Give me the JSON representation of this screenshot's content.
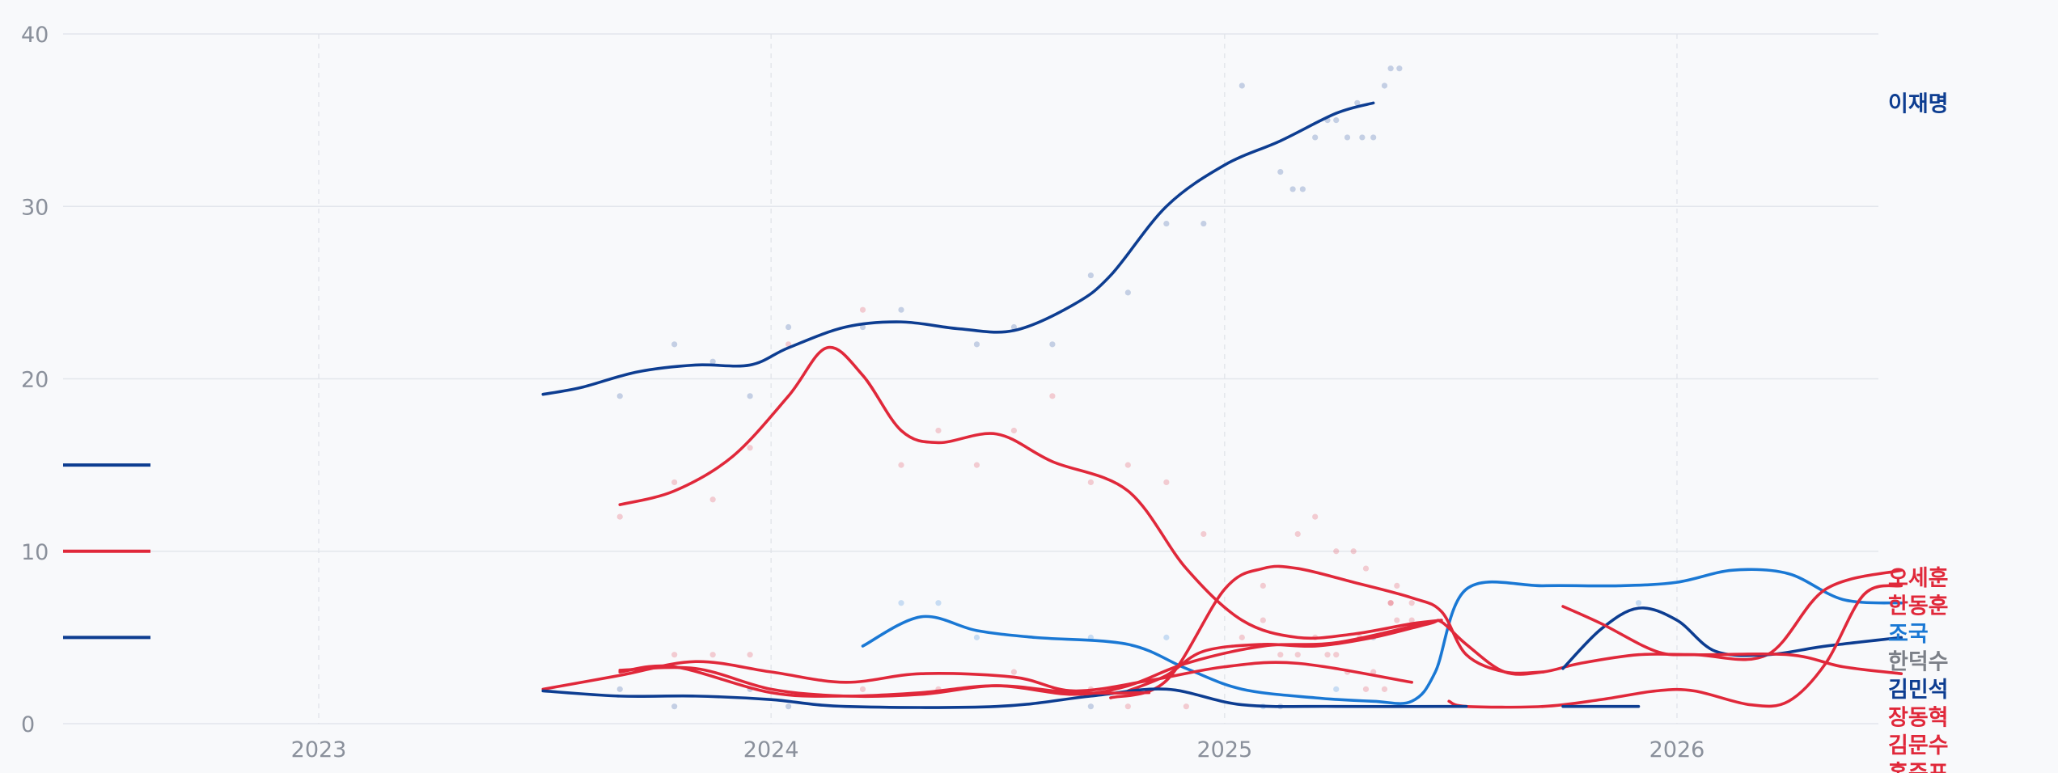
{
  "chart_data": {
    "type": "line",
    "x_axis": {
      "type": "date",
      "range": [
        "2022-07-15",
        "2026-07-01"
      ],
      "ticks": [
        "2023-01-01",
        "2024-01-01",
        "2025-01-01",
        "2026-01-01"
      ],
      "tick_labels": [
        "2023",
        "2024",
        "2025",
        "2026"
      ],
      "grid": "dashed vertical"
    },
    "y_axis": {
      "range": [
        0,
        40
      ],
      "ticks": [
        0,
        10,
        20,
        30,
        40
      ],
      "grid": "solid horizontal"
    },
    "legend": {
      "placement": "left",
      "swatch_colors": [
        "#0d3d91",
        "#e0283a",
        "#0d3d91"
      ],
      "swatch_levels": [
        15,
        10,
        5
      ]
    },
    "series": [
      {
        "name": "이재명",
        "color": "#0d3d91",
        "label_color": "#0d3d91",
        "points": [
          [
            "2023-07-01",
            19.1
          ],
          [
            "2023-08-01",
            19.5
          ],
          [
            "2023-09-15",
            20.4
          ],
          [
            "2023-11-01",
            20.8
          ],
          [
            "2023-12-15",
            20.8
          ],
          [
            "2024-01-15",
            21.8
          ],
          [
            "2024-03-01",
            23.0
          ],
          [
            "2024-04-15",
            23.3
          ],
          [
            "2024-06-01",
            22.9
          ],
          [
            "2024-07-15",
            22.8
          ],
          [
            "2024-09-01",
            24.3
          ],
          [
            "2024-10-01",
            26.0
          ],
          [
            "2024-11-15",
            30.0
          ],
          [
            "2025-01-01",
            32.4
          ],
          [
            "2025-02-15",
            33.8
          ],
          [
            "2025-04-01",
            35.4
          ],
          [
            "2025-05-01",
            36.0
          ]
        ]
      },
      {
        "name": "조국",
        "color": "#1a78d4",
        "label_color": "#1a78d4",
        "points": [
          [
            "2024-03-15",
            4.5
          ],
          [
            "2024-05-01",
            6.2
          ],
          [
            "2024-06-15",
            5.4
          ],
          [
            "2024-08-01",
            5.0
          ],
          [
            "2024-10-15",
            4.6
          ],
          [
            "2024-12-01",
            3.2
          ],
          [
            "2025-01-15",
            2.0
          ],
          [
            "2025-03-15",
            1.5
          ],
          [
            "2025-05-01",
            1.3
          ],
          [
            "2025-06-01",
            1.3
          ],
          [
            "2025-06-20",
            3.0
          ],
          [
            "2025-07-15",
            7.8
          ],
          [
            "2025-09-15",
            8.0
          ],
          [
            "2025-11-15",
            8.0
          ],
          [
            "2026-01-01",
            8.2
          ],
          [
            "2026-02-15",
            8.9
          ],
          [
            "2026-04-01",
            8.7
          ],
          [
            "2026-05-15",
            7.2
          ],
          [
            "2026-07-01",
            7.0
          ]
        ]
      },
      {
        "name": "오세훈",
        "color": "#e0283a",
        "label_color": "#e0283a",
        "points": [
          [
            "2024-10-15",
            1.9
          ],
          [
            "2024-11-15",
            2.8
          ],
          [
            "2024-12-15",
            4.2
          ],
          [
            "2025-02-01",
            4.6
          ],
          [
            "2025-03-15",
            4.5
          ],
          [
            "2025-05-01",
            5.0
          ],
          [
            "2025-06-15",
            5.8
          ],
          [
            "2025-06-25",
            5.9
          ],
          [
            "2025-07-15",
            4.6
          ],
          [
            "2025-08-15",
            3.0
          ],
          [
            "2025-09-15",
            3.0
          ],
          [
            "2025-10-15",
            3.5
          ],
          [
            "2025-12-01",
            4.0
          ],
          [
            "2026-01-15",
            4.0
          ],
          [
            "2026-03-15",
            4.0
          ],
          [
            "2026-05-01",
            7.8
          ],
          [
            "2026-07-01",
            8.9
          ]
        ]
      },
      {
        "name": "한동훈",
        "color": "#e0283a",
        "label_color": "#e0283a",
        "points": [
          [
            "2023-09-01",
            12.7
          ],
          [
            "2023-10-15",
            13.5
          ],
          [
            "2023-12-01",
            15.5
          ],
          [
            "2024-01-15",
            19.0
          ],
          [
            "2024-02-15",
            21.8
          ],
          [
            "2024-03-15",
            20.2
          ],
          [
            "2024-04-15",
            17.0
          ],
          [
            "2024-05-15",
            16.3
          ],
          [
            "2024-07-01",
            16.8
          ],
          [
            "2024-08-15",
            15.2
          ],
          [
            "2024-10-15",
            13.5
          ],
          [
            "2024-12-01",
            9.0
          ],
          [
            "2025-01-15",
            6.0
          ],
          [
            "2025-03-01",
            5.0
          ],
          [
            "2025-04-15",
            5.2
          ],
          [
            "2025-06-01",
            5.8
          ],
          [
            "2025-06-25",
            6.0
          ]
        ]
      },
      {
        "name": "한덕수",
        "color": "#e0283a",
        "label_color": "#7c8088",
        "points": [
          [
            "2024-10-01",
            1.5
          ],
          [
            "2024-11-15",
            2.5
          ],
          [
            "2025-01-01",
            7.8
          ],
          [
            "2025-02-01",
            9.0
          ],
          [
            "2025-03-01",
            9.0
          ],
          [
            "2025-04-15",
            8.2
          ],
          [
            "2025-06-01",
            7.3
          ],
          [
            "2025-06-25",
            6.5
          ],
          [
            "2025-07-15",
            4.0
          ],
          [
            "2025-08-15",
            3.0
          ],
          [
            "2025-09-15",
            3.0
          ]
        ]
      },
      {
        "name": "김민석",
        "color": "#0d3d91",
        "label_color": "#0d3d91",
        "points": [
          [
            "2025-10-01",
            3.2
          ],
          [
            "2025-11-01",
            5.5
          ],
          [
            "2025-12-01",
            6.7
          ],
          [
            "2026-01-01",
            6.0
          ],
          [
            "2026-02-01",
            4.2
          ],
          [
            "2026-03-15",
            4.0
          ],
          [
            "2026-05-01",
            4.5
          ],
          [
            "2026-07-01",
            5.0
          ]
        ]
      },
      {
        "name": "장동혁",
        "color": "#e0283a",
        "label_color": "#e0283a",
        "points": [
          [
            "2025-10-01",
            6.8
          ],
          [
            "2025-11-01",
            5.8
          ],
          [
            "2025-12-15",
            4.2
          ],
          [
            "2026-01-15",
            4.0
          ],
          [
            "2026-04-01",
            4.0
          ],
          [
            "2026-05-15",
            3.3
          ],
          [
            "2026-07-01",
            2.9
          ]
        ]
      },
      {
        "name": "김문수",
        "color": "#e0283a",
        "label_color": "#e0283a",
        "points": [
          [
            "2025-07-01",
            1.3
          ],
          [
            "2025-07-15",
            1.0
          ],
          [
            "2025-09-15",
            1.0
          ],
          [
            "2025-11-01",
            1.4
          ],
          [
            "2025-12-15",
            1.9
          ],
          [
            "2026-01-15",
            1.9
          ],
          [
            "2026-03-01",
            1.1
          ],
          [
            "2026-04-01",
            1.3
          ],
          [
            "2026-05-01",
            3.5
          ],
          [
            "2026-06-01",
            7.5
          ],
          [
            "2026-07-01",
            8.0
          ]
        ]
      },
      {
        "name": "홍준표",
        "color": "#e0283a",
        "label_color": "#e0283a",
        "points": [
          [
            "2023-07-01",
            2.0
          ],
          [
            "2023-09-01",
            2.8
          ],
          [
            "2023-11-01",
            3.6
          ],
          [
            "2024-01-01",
            3.0
          ],
          [
            "2024-03-01",
            2.4
          ],
          [
            "2024-05-01",
            2.9
          ],
          [
            "2024-07-15",
            2.7
          ],
          [
            "2024-09-01",
            1.9
          ],
          [
            "2024-11-01",
            2.5
          ],
          [
            "2025-01-01",
            3.3
          ],
          [
            "2025-03-01",
            3.5
          ],
          [
            "2025-06-01",
            2.4
          ]
        ]
      },
      {
        "name": "",
        "color": "#0d3d91",
        "points": [
          [
            "2023-07-01",
            1.9
          ],
          [
            "2023-09-01",
            1.6
          ],
          [
            "2023-11-01",
            1.6
          ],
          [
            "2024-01-01",
            1.4
          ],
          [
            "2024-03-01",
            1.0
          ],
          [
            "2024-07-01",
            1.0
          ],
          [
            "2024-09-15",
            1.6
          ],
          [
            "2024-11-15",
            2.0
          ],
          [
            "2025-01-15",
            1.1
          ],
          [
            "2025-04-01",
            1.0
          ],
          [
            "2025-07-15",
            1.0
          ]
        ]
      },
      {
        "name": "",
        "color": "#e0283a",
        "points": [
          [
            "2023-09-01",
            3.0
          ],
          [
            "2023-10-15",
            3.3
          ],
          [
            "2024-01-01",
            1.8
          ],
          [
            "2024-03-01",
            1.6
          ],
          [
            "2024-05-01",
            1.8
          ],
          [
            "2024-07-01",
            2.2
          ],
          [
            "2024-09-01",
            1.7
          ],
          [
            "2024-10-15",
            2.2
          ],
          [
            "2024-12-01",
            3.5
          ],
          [
            "2025-02-01",
            4.5
          ],
          [
            "2025-04-01",
            4.7
          ],
          [
            "2025-06-10",
            5.8
          ]
        ]
      },
      {
        "name": "",
        "color": "#e0283a",
        "points": [
          [
            "2023-09-01",
            3.1
          ],
          [
            "2023-11-01",
            3.2
          ],
          [
            "2024-01-01",
            2.0
          ],
          [
            "2024-03-01",
            1.6
          ],
          [
            "2024-05-01",
            1.7
          ],
          [
            "2024-07-01",
            2.2
          ],
          [
            "2024-09-01",
            1.8
          ],
          [
            "2024-11-01",
            1.8
          ]
        ]
      },
      {
        "name": "",
        "color": "#0d3d91",
        "points": [
          [
            "2025-10-01",
            1.0
          ],
          [
            "2025-12-01",
            1.0
          ]
        ]
      }
    ],
    "scatter_points": [
      [
        "2023-09-01",
        19,
        "#0d3d91"
      ],
      [
        "2023-10-15",
        22,
        "#0d3d91"
      ],
      [
        "2023-11-15",
        21,
        "#0d3d91"
      ],
      [
        "2023-12-15",
        19,
        "#0d3d91"
      ],
      [
        "2024-01-15",
        23,
        "#0d3d91"
      ],
      [
        "2024-03-15",
        23,
        "#0d3d91"
      ],
      [
        "2024-04-15",
        24,
        "#0d3d91"
      ],
      [
        "2024-06-15",
        22,
        "#0d3d91"
      ],
      [
        "2024-07-15",
        23,
        "#0d3d91"
      ],
      [
        "2024-08-15",
        22,
        "#0d3d91"
      ],
      [
        "2024-09-15",
        26,
        "#0d3d91"
      ],
      [
        "2024-10-15",
        25,
        "#0d3d91"
      ],
      [
        "2024-11-15",
        29,
        "#0d3d91"
      ],
      [
        "2024-12-15",
        29,
        "#0d3d91"
      ],
      [
        "2025-01-15",
        37,
        "#0d3d91"
      ],
      [
        "2025-02-15",
        32,
        "#0d3d91"
      ],
      [
        "2025-02-25",
        31,
        "#0d3d91"
      ],
      [
        "2025-03-05",
        31,
        "#0d3d91"
      ],
      [
        "2025-03-15",
        34,
        "#0d3d91"
      ],
      [
        "2025-03-25",
        35,
        "#0d3d91"
      ],
      [
        "2025-04-01",
        35,
        "#0d3d91"
      ],
      [
        "2025-04-10",
        34,
        "#0d3d91"
      ],
      [
        "2025-04-18",
        36,
        "#0d3d91"
      ],
      [
        "2025-04-22",
        34,
        "#0d3d91"
      ],
      [
        "2025-05-01",
        34,
        "#0d3d91"
      ],
      [
        "2025-05-10",
        37,
        "#0d3d91"
      ],
      [
        "2025-05-15",
        38,
        "#0d3d91"
      ],
      [
        "2025-05-22",
        38,
        "#0d3d91"
      ],
      [
        "2023-09-01",
        12,
        "#e0283a"
      ],
      [
        "2023-10-15",
        14,
        "#e0283a"
      ],
      [
        "2023-11-15",
        13,
        "#e0283a"
      ],
      [
        "2023-12-15",
        16,
        "#e0283a"
      ],
      [
        "2024-01-15",
        22,
        "#e0283a"
      ],
      [
        "2024-03-15",
        24,
        "#e0283a"
      ],
      [
        "2024-04-15",
        15,
        "#e0283a"
      ],
      [
        "2024-05-15",
        17,
        "#e0283a"
      ],
      [
        "2024-06-15",
        15,
        "#e0283a"
      ],
      [
        "2024-07-15",
        17,
        "#e0283a"
      ],
      [
        "2024-08-15",
        19,
        "#e0283a"
      ],
      [
        "2024-09-15",
        14,
        "#e0283a"
      ],
      [
        "2024-10-15",
        15,
        "#e0283a"
      ],
      [
        "2024-11-15",
        14,
        "#e0283a"
      ],
      [
        "2024-12-15",
        11,
        "#e0283a"
      ],
      [
        "2025-02-01",
        8,
        "#e0283a"
      ],
      [
        "2025-03-01",
        11,
        "#e0283a"
      ],
      [
        "2025-03-15",
        12,
        "#e0283a"
      ],
      [
        "2025-04-01",
        10,
        "#e0283a"
      ],
      [
        "2025-04-15",
        10,
        "#e0283a"
      ],
      [
        "2025-04-25",
        9,
        "#e0283a"
      ],
      [
        "2025-05-15",
        7,
        "#e0283a"
      ],
      [
        "2025-05-20",
        6,
        "#e0283a"
      ],
      [
        "2025-06-01",
        6,
        "#e0283a"
      ],
      [
        "2024-04-15",
        7,
        "#1a78d4"
      ],
      [
        "2024-05-15",
        7,
        "#1a78d4"
      ],
      [
        "2024-06-15",
        5,
        "#1a78d4"
      ],
      [
        "2024-09-15",
        5,
        "#1a78d4"
      ],
      [
        "2024-11-15",
        5,
        "#1a78d4"
      ],
      [
        "2025-02-01",
        1,
        "#1a78d4"
      ],
      [
        "2025-04-01",
        2,
        "#1a78d4"
      ],
      [
        "2025-12-01",
        7,
        "#1a78d4"
      ],
      [
        "2023-09-01",
        2,
        "#0d3d91"
      ],
      [
        "2023-10-15",
        1,
        "#0d3d91"
      ],
      [
        "2023-12-15",
        2,
        "#0d3d91"
      ],
      [
        "2024-01-15",
        1,
        "#0d3d91"
      ],
      [
        "2024-09-15",
        1,
        "#0d3d91"
      ],
      [
        "2025-02-15",
        1,
        "#0d3d91"
      ],
      [
        "2025-05-01",
        5,
        "#0d3d91"
      ],
      [
        "2023-10-15",
        4,
        "#e0283a"
      ],
      [
        "2023-11-15",
        4,
        "#e0283a"
      ],
      [
        "2023-12-15",
        4,
        "#e0283a"
      ],
      [
        "2024-03-15",
        2,
        "#e0283a"
      ],
      [
        "2024-05-15",
        2,
        "#e0283a"
      ],
      [
        "2024-07-15",
        3,
        "#e0283a"
      ],
      [
        "2024-09-15",
        2,
        "#e0283a"
      ],
      [
        "2024-10-15",
        1,
        "#e0283a"
      ],
      [
        "2024-12-01",
        1,
        "#e0283a"
      ],
      [
        "2025-01-15",
        5,
        "#e0283a"
      ],
      [
        "2025-02-01",
        6,
        "#e0283a"
      ],
      [
        "2025-02-15",
        4,
        "#e0283a"
      ],
      [
        "2025-03-01",
        4,
        "#e0283a"
      ],
      [
        "2025-03-15",
        5,
        "#e0283a"
      ],
      [
        "2025-03-25",
        4,
        "#e0283a"
      ],
      [
        "2025-04-01",
        4,
        "#e0283a"
      ],
      [
        "2025-04-10",
        3,
        "#e0283a"
      ],
      [
        "2025-04-20",
        5,
        "#e0283a"
      ],
      [
        "2025-04-25",
        2,
        "#e0283a"
      ],
      [
        "2025-05-01",
        3,
        "#e0283a"
      ],
      [
        "2025-05-10",
        2,
        "#e0283a"
      ],
      [
        "2025-05-15",
        7,
        "#e0283a"
      ],
      [
        "2025-05-20",
        8,
        "#e0283a"
      ],
      [
        "2025-06-01",
        7,
        "#e0283a"
      ]
    ]
  }
}
